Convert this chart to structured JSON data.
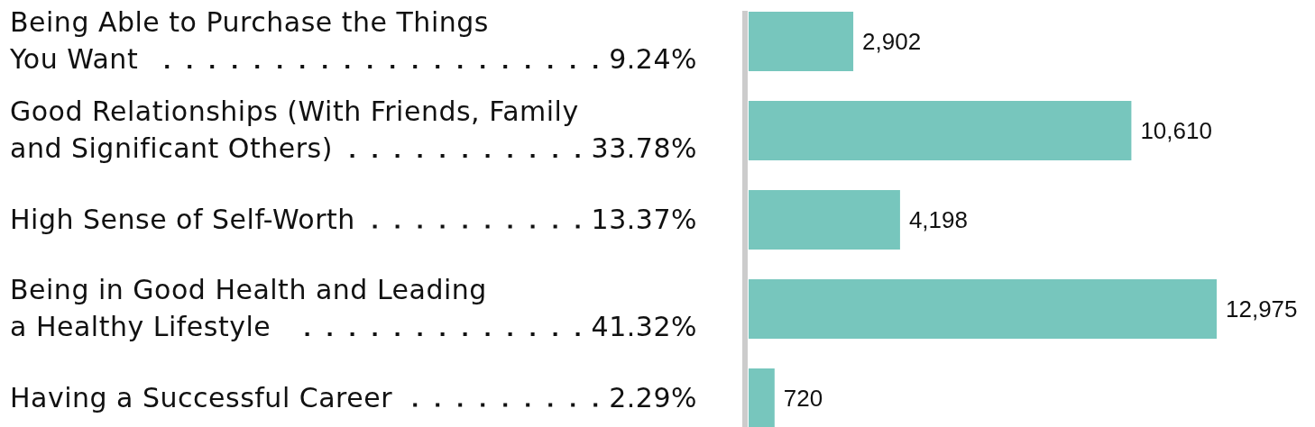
{
  "chart_data": {
    "type": "bar",
    "orientation": "horizontal",
    "categories": [
      "Being Able to Purchase the Things\nYou Want",
      "Good Relationships (With Friends, Family\nand Significant Others)",
      "High Sense of Self-Worth",
      "Being in Good Health and Leading\na Healthy Lifestyle",
      "Having a Successful Career"
    ],
    "values": [
      2902,
      10610,
      4198,
      12975,
      720
    ],
    "color": "#77c6bd",
    "value_labels": [
      "2,902",
      "10,610",
      "4,198",
      "12,975",
      "720"
    ],
    "annotations": [
      "9.24%",
      "33.78%",
      "13.37%",
      "41.32%",
      "2.29%"
    ]
  }
}
